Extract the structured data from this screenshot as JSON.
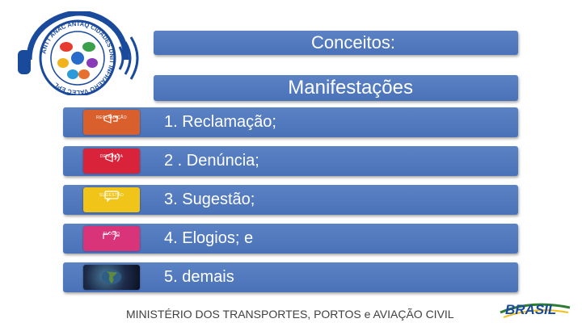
{
  "header": {
    "title": "Conceitos:",
    "subtitle": "Manifestações"
  },
  "items": [
    {
      "label": "1. Reclamação;",
      "thumb_caption": "RECLAMAÇÃO",
      "thumb_color": "#d95f2c",
      "icon": "megaphone-icon"
    },
    {
      "label": "2 . Denúncia;",
      "thumb_caption": "DENÚNCIA",
      "thumb_color": "#d9233a",
      "icon": "megaphone-icon"
    },
    {
      "label": "3. Sugestão;",
      "thumb_caption": "SUGESTÃO",
      "thumb_color": "#f0c419",
      "icon": "speech-bubble-icon"
    },
    {
      "label": "4. Elogios; e",
      "thumb_caption": "ELOGIO",
      "thumb_color": "#d9337a",
      "icon": "handshake-icon"
    },
    {
      "label": "5. demais",
      "thumb_caption": "",
      "thumb_color": "#1d2b4a",
      "icon": "globe-icon"
    }
  ],
  "logo": {
    "ring_text": "ANTT ANAC ANTAQ CIDADES DNIT INFRAERO VALEC EPL"
  },
  "footer": {
    "text": "MINISTÉRIO DOS TRANSPORTES, PORTOS e AVIAÇÃO CIVIL"
  },
  "brasil_logo": {
    "text": "BRASIL"
  },
  "colors": {
    "bar": "#4a72b8",
    "bar_text": "#ffffff",
    "logo_ring": "#1a4a9c"
  }
}
